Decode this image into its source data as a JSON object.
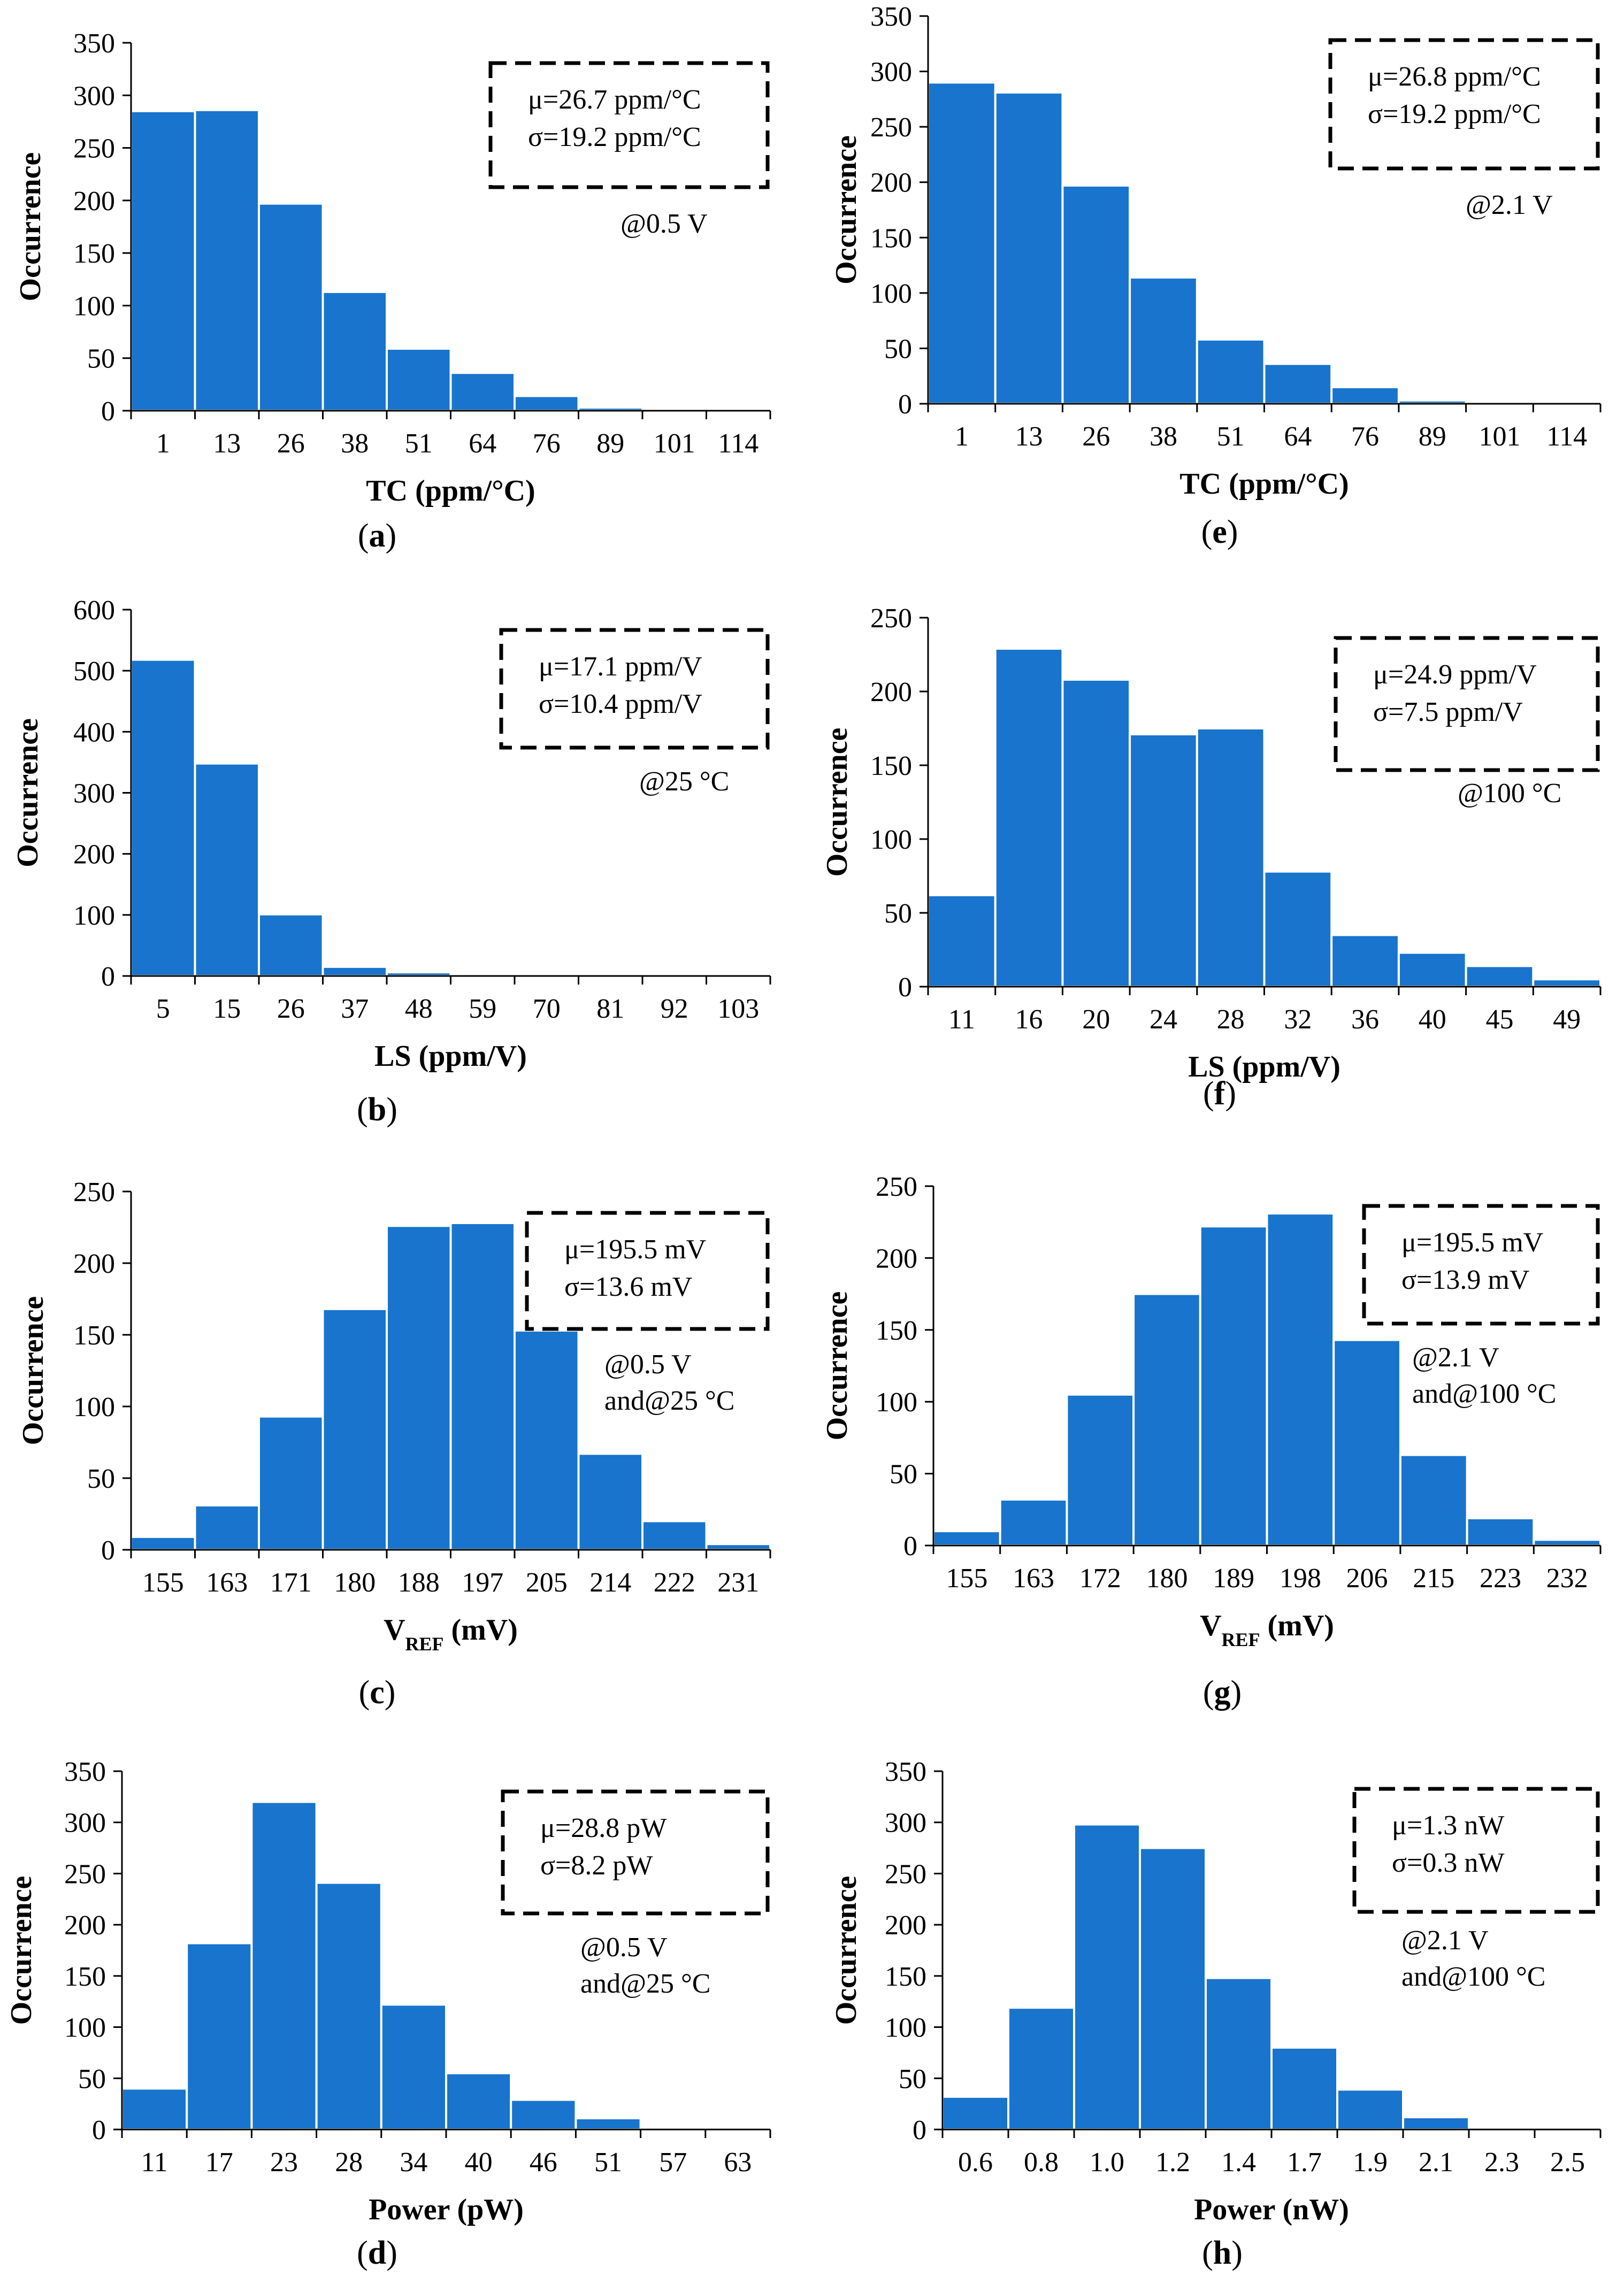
{
  "colors": {
    "bar": "#1874cd",
    "bar_edge": "#ffffff",
    "axis": "#000000",
    "box_border": "#000000"
  },
  "chart_data": [
    {
      "id": "a",
      "panel_label": "a",
      "type": "bar",
      "categories": [
        "1",
        "13",
        "26",
        "38",
        "51",
        "64",
        "76",
        "89",
        "101",
        "114"
      ],
      "values": [
        285,
        286,
        197,
        113,
        59,
        36,
        14,
        3,
        1,
        1
      ],
      "ylim": [
        0,
        350
      ],
      "yticks": [
        0,
        50,
        100,
        150,
        200,
        250,
        300,
        350
      ],
      "xlabel": "TC (ppm/°C)",
      "xlabel_sub": "",
      "xlabel_suffix": "",
      "ylabel": "Occurrence",
      "stats": [
        "μ=26.7 ppm/°C",
        "σ=19.2 ppm/°C"
      ],
      "condition": [
        "@0.5 V"
      ]
    },
    {
      "id": "b",
      "panel_label": "b",
      "type": "bar",
      "categories": [
        "5",
        "15",
        "26",
        "37",
        "48",
        "59",
        "70",
        "81",
        "92",
        "103"
      ],
      "values": [
        518,
        348,
        101,
        15,
        6,
        2,
        1,
        1,
        1,
        1
      ],
      "ylim": [
        0,
        600
      ],
      "yticks": [
        0,
        100,
        200,
        300,
        400,
        500,
        600
      ],
      "xlabel": "LS (ppm/V)",
      "xlabel_sub": "",
      "xlabel_suffix": "",
      "ylabel": "Occurrence",
      "stats": [
        "μ=17.1 ppm/V",
        "σ=10.4 ppm/V"
      ],
      "condition": [
        "@25 °C"
      ]
    },
    {
      "id": "c",
      "panel_label": "c",
      "type": "bar",
      "categories": [
        "155",
        "163",
        "171",
        "180",
        "188",
        "197",
        "205",
        "214",
        "222",
        "231"
      ],
      "values": [
        9,
        31,
        93,
        168,
        226,
        228,
        153,
        67,
        20,
        4
      ],
      "ylim": [
        0,
        250
      ],
      "yticks": [
        0,
        50,
        100,
        150,
        200,
        250
      ],
      "xlabel": "V",
      "xlabel_sub": "REF",
      "xlabel_suffix": " (mV)",
      "ylabel": "Occurrence",
      "stats": [
        "μ=195.5 mV",
        "σ=13.6 mV"
      ],
      "condition": [
        "@0.5 V",
        "and@25 °C"
      ]
    },
    {
      "id": "d",
      "panel_label": "d",
      "type": "bar",
      "categories": [
        "11",
        "17",
        "23",
        "28",
        "34",
        "40",
        "46",
        "51",
        "57",
        "63"
      ],
      "values": [
        40,
        182,
        320,
        241,
        122,
        55,
        29,
        11,
        1,
        2
      ],
      "ylim": [
        0,
        350
      ],
      "yticks": [
        0,
        50,
        100,
        150,
        200,
        250,
        300,
        350
      ],
      "xlabel": "Power (pW)",
      "xlabel_sub": "",
      "xlabel_suffix": "",
      "ylabel": "Occurrence",
      "stats": [
        "μ=28.8 pW",
        "σ=8.2 pW"
      ],
      "condition": [
        "@0.5 V",
        "and@25 °C"
      ]
    },
    {
      "id": "e",
      "panel_label": "e",
      "type": "bar",
      "categories": [
        "1",
        "13",
        "26",
        "38",
        "51",
        "64",
        "76",
        "89",
        "101",
        "114"
      ],
      "values": [
        290,
        281,
        197,
        114,
        58,
        36,
        15,
        3,
        1,
        1
      ],
      "ylim": [
        0,
        350
      ],
      "yticks": [
        0,
        50,
        100,
        150,
        200,
        250,
        300,
        350
      ],
      "xlabel": "TC (ppm/°C)",
      "xlabel_sub": "",
      "xlabel_suffix": "",
      "ylabel": "Occurrence",
      "stats": [
        "μ=26.8 ppm/°C",
        "σ=19.2 ppm/°C"
      ],
      "condition": [
        "@2.1 V"
      ]
    },
    {
      "id": "f",
      "panel_label": "f",
      "type": "bar",
      "categories": [
        "11",
        "16",
        "20",
        "24",
        "28",
        "32",
        "36",
        "40",
        "45",
        "49"
      ],
      "values": [
        62,
        229,
        208,
        171,
        175,
        78,
        35,
        23,
        14,
        5
      ],
      "ylim": [
        0,
        250
      ],
      "yticks": [
        0,
        50,
        100,
        150,
        200,
        250
      ],
      "xlabel": "LS (ppm/V)",
      "xlabel_sub": "",
      "xlabel_suffix": "",
      "ylabel": "Occurrence",
      "stats": [
        "μ=24.9 ppm/V",
        "σ=7.5 ppm/V"
      ],
      "condition": [
        "@100 °C"
      ]
    },
    {
      "id": "g",
      "panel_label": "g",
      "type": "bar",
      "categories": [
        "155",
        "163",
        "172",
        "180",
        "189",
        "198",
        "206",
        "215",
        "223",
        "232"
      ],
      "values": [
        10,
        32,
        105,
        175,
        222,
        231,
        143,
        63,
        19,
        4
      ],
      "ylim": [
        0,
        250
      ],
      "yticks": [
        0,
        50,
        100,
        150,
        200,
        250
      ],
      "xlabel": "V",
      "xlabel_sub": "REF",
      "xlabel_suffix": " (mV)",
      "ylabel": "Occurrence",
      "stats": [
        "μ=195.5 mV",
        "σ=13.9 mV"
      ],
      "condition": [
        "@2.1 V",
        "and@100 °C"
      ]
    },
    {
      "id": "h",
      "panel_label": "h",
      "type": "bar",
      "categories": [
        "0.6",
        "0.8",
        "1.0",
        "1.2",
        "1.4",
        "1.7",
        "1.9",
        "2.1",
        "2.3",
        "2.5"
      ],
      "values": [
        32,
        119,
        298,
        275,
        148,
        80,
        39,
        12,
        1,
        1
      ],
      "ylim": [
        0,
        350
      ],
      "yticks": [
        0,
        50,
        100,
        150,
        200,
        250,
        300,
        350
      ],
      "xlabel": "Power (nW)",
      "xlabel_sub": "",
      "xlabel_suffix": "",
      "ylabel": "Occurrence",
      "stats": [
        "μ=1.3 nW",
        "σ=0.3 nW"
      ],
      "condition": [
        "@2.1 V",
        "and@100 °C"
      ]
    }
  ]
}
